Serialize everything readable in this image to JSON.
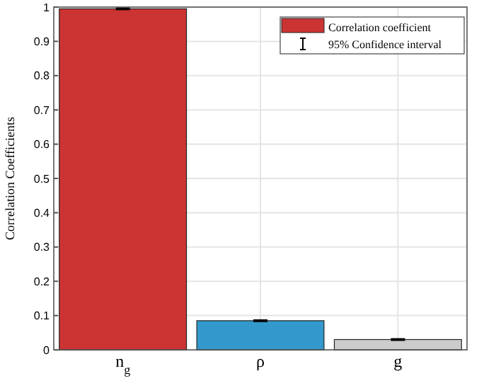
{
  "chart_data": {
    "type": "bar",
    "ylabel": "Correlation Coefficients",
    "categories": [
      "n$_{g}$",
      "ρ",
      "g"
    ],
    "series": [
      {
        "name": "Correlation coefficient",
        "color": "#cc3333",
        "colors": [
          "#cc3333",
          "#3399cc",
          "#cccccc"
        ],
        "values": [
          0.995,
          0.085,
          0.03
        ],
        "errors": [
          0.002,
          0.002,
          0.002
        ]
      }
    ],
    "annotations": [
      "95% Confidence interval"
    ],
    "ylim": [
      0,
      1
    ],
    "yticks": [
      0,
      0.1,
      0.2,
      0.3,
      0.4,
      0.5,
      0.6,
      0.7,
      0.8,
      0.9,
      1
    ],
    "grid": true,
    "legend": "top right"
  }
}
